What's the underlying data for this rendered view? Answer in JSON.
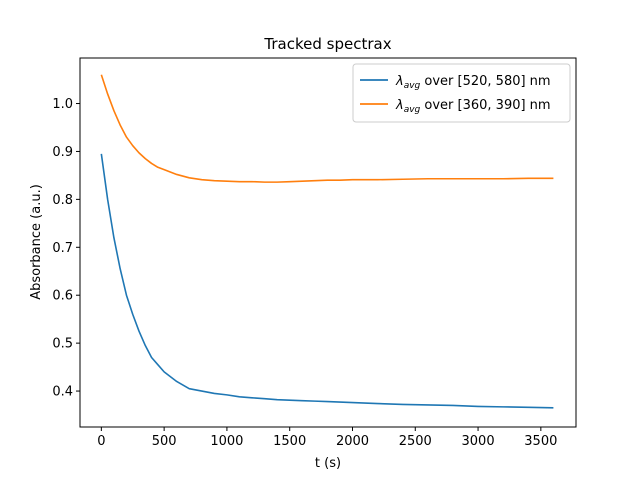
{
  "chart_data": {
    "type": "line",
    "title": "Tracked spectrax",
    "xlabel": "t (s)",
    "ylabel": "Absorbance (a.u.)",
    "xlim": [
      -170,
      3780
    ],
    "ylim": [
      0.325,
      1.095
    ],
    "x_ticks": [
      0,
      500,
      1000,
      1500,
      2000,
      2500,
      3000,
      3500
    ],
    "y_ticks": [
      0.4,
      0.5,
      0.6,
      0.7,
      0.8,
      0.9,
      1.0
    ],
    "x_tick_labels": [
      "0",
      "500",
      "1000",
      "1500",
      "2000",
      "2500",
      "3000",
      "3500"
    ],
    "y_tick_labels": [
      "0.4",
      "0.5",
      "0.6",
      "0.7",
      "0.8",
      "0.9",
      "1.0"
    ],
    "grid": false,
    "legend_position": "top-right",
    "series": [
      {
        "name_symbol": "λ",
        "name_sub": "avg",
        "name_rest": " over [520, 580] nm",
        "color": "#1f77b4",
        "x": [
          0,
          50,
          100,
          150,
          200,
          250,
          300,
          350,
          400,
          450,
          500,
          600,
          700,
          800,
          900,
          1000,
          1100,
          1200,
          1300,
          1400,
          1500,
          1600,
          1700,
          1800,
          1900,
          2000,
          2200,
          2400,
          2600,
          2800,
          3000,
          3200,
          3400,
          3600
        ],
        "y": [
          0.895,
          0.8,
          0.72,
          0.655,
          0.6,
          0.56,
          0.525,
          0.495,
          0.47,
          0.455,
          0.44,
          0.42,
          0.405,
          0.4,
          0.395,
          0.392,
          0.388,
          0.386,
          0.384,
          0.382,
          0.381,
          0.38,
          0.379,
          0.378,
          0.377,
          0.376,
          0.374,
          0.372,
          0.371,
          0.37,
          0.368,
          0.367,
          0.366,
          0.365
        ]
      },
      {
        "name_symbol": "λ",
        "name_sub": "avg",
        "name_rest": " over [360, 390] nm",
        "color": "#ff7f0e",
        "x": [
          0,
          50,
          100,
          150,
          200,
          250,
          300,
          350,
          400,
          450,
          500,
          600,
          700,
          800,
          900,
          1000,
          1100,
          1200,
          1300,
          1400,
          1500,
          1600,
          1700,
          1800,
          1900,
          2000,
          2200,
          2400,
          2600,
          2800,
          3000,
          3200,
          3400,
          3600
        ],
        "y": [
          1.06,
          1.02,
          0.985,
          0.955,
          0.93,
          0.912,
          0.897,
          0.885,
          0.875,
          0.867,
          0.862,
          0.852,
          0.845,
          0.841,
          0.839,
          0.838,
          0.837,
          0.837,
          0.836,
          0.836,
          0.837,
          0.838,
          0.839,
          0.84,
          0.84,
          0.841,
          0.841,
          0.842,
          0.843,
          0.843,
          0.843,
          0.843,
          0.844,
          0.844
        ]
      }
    ]
  }
}
